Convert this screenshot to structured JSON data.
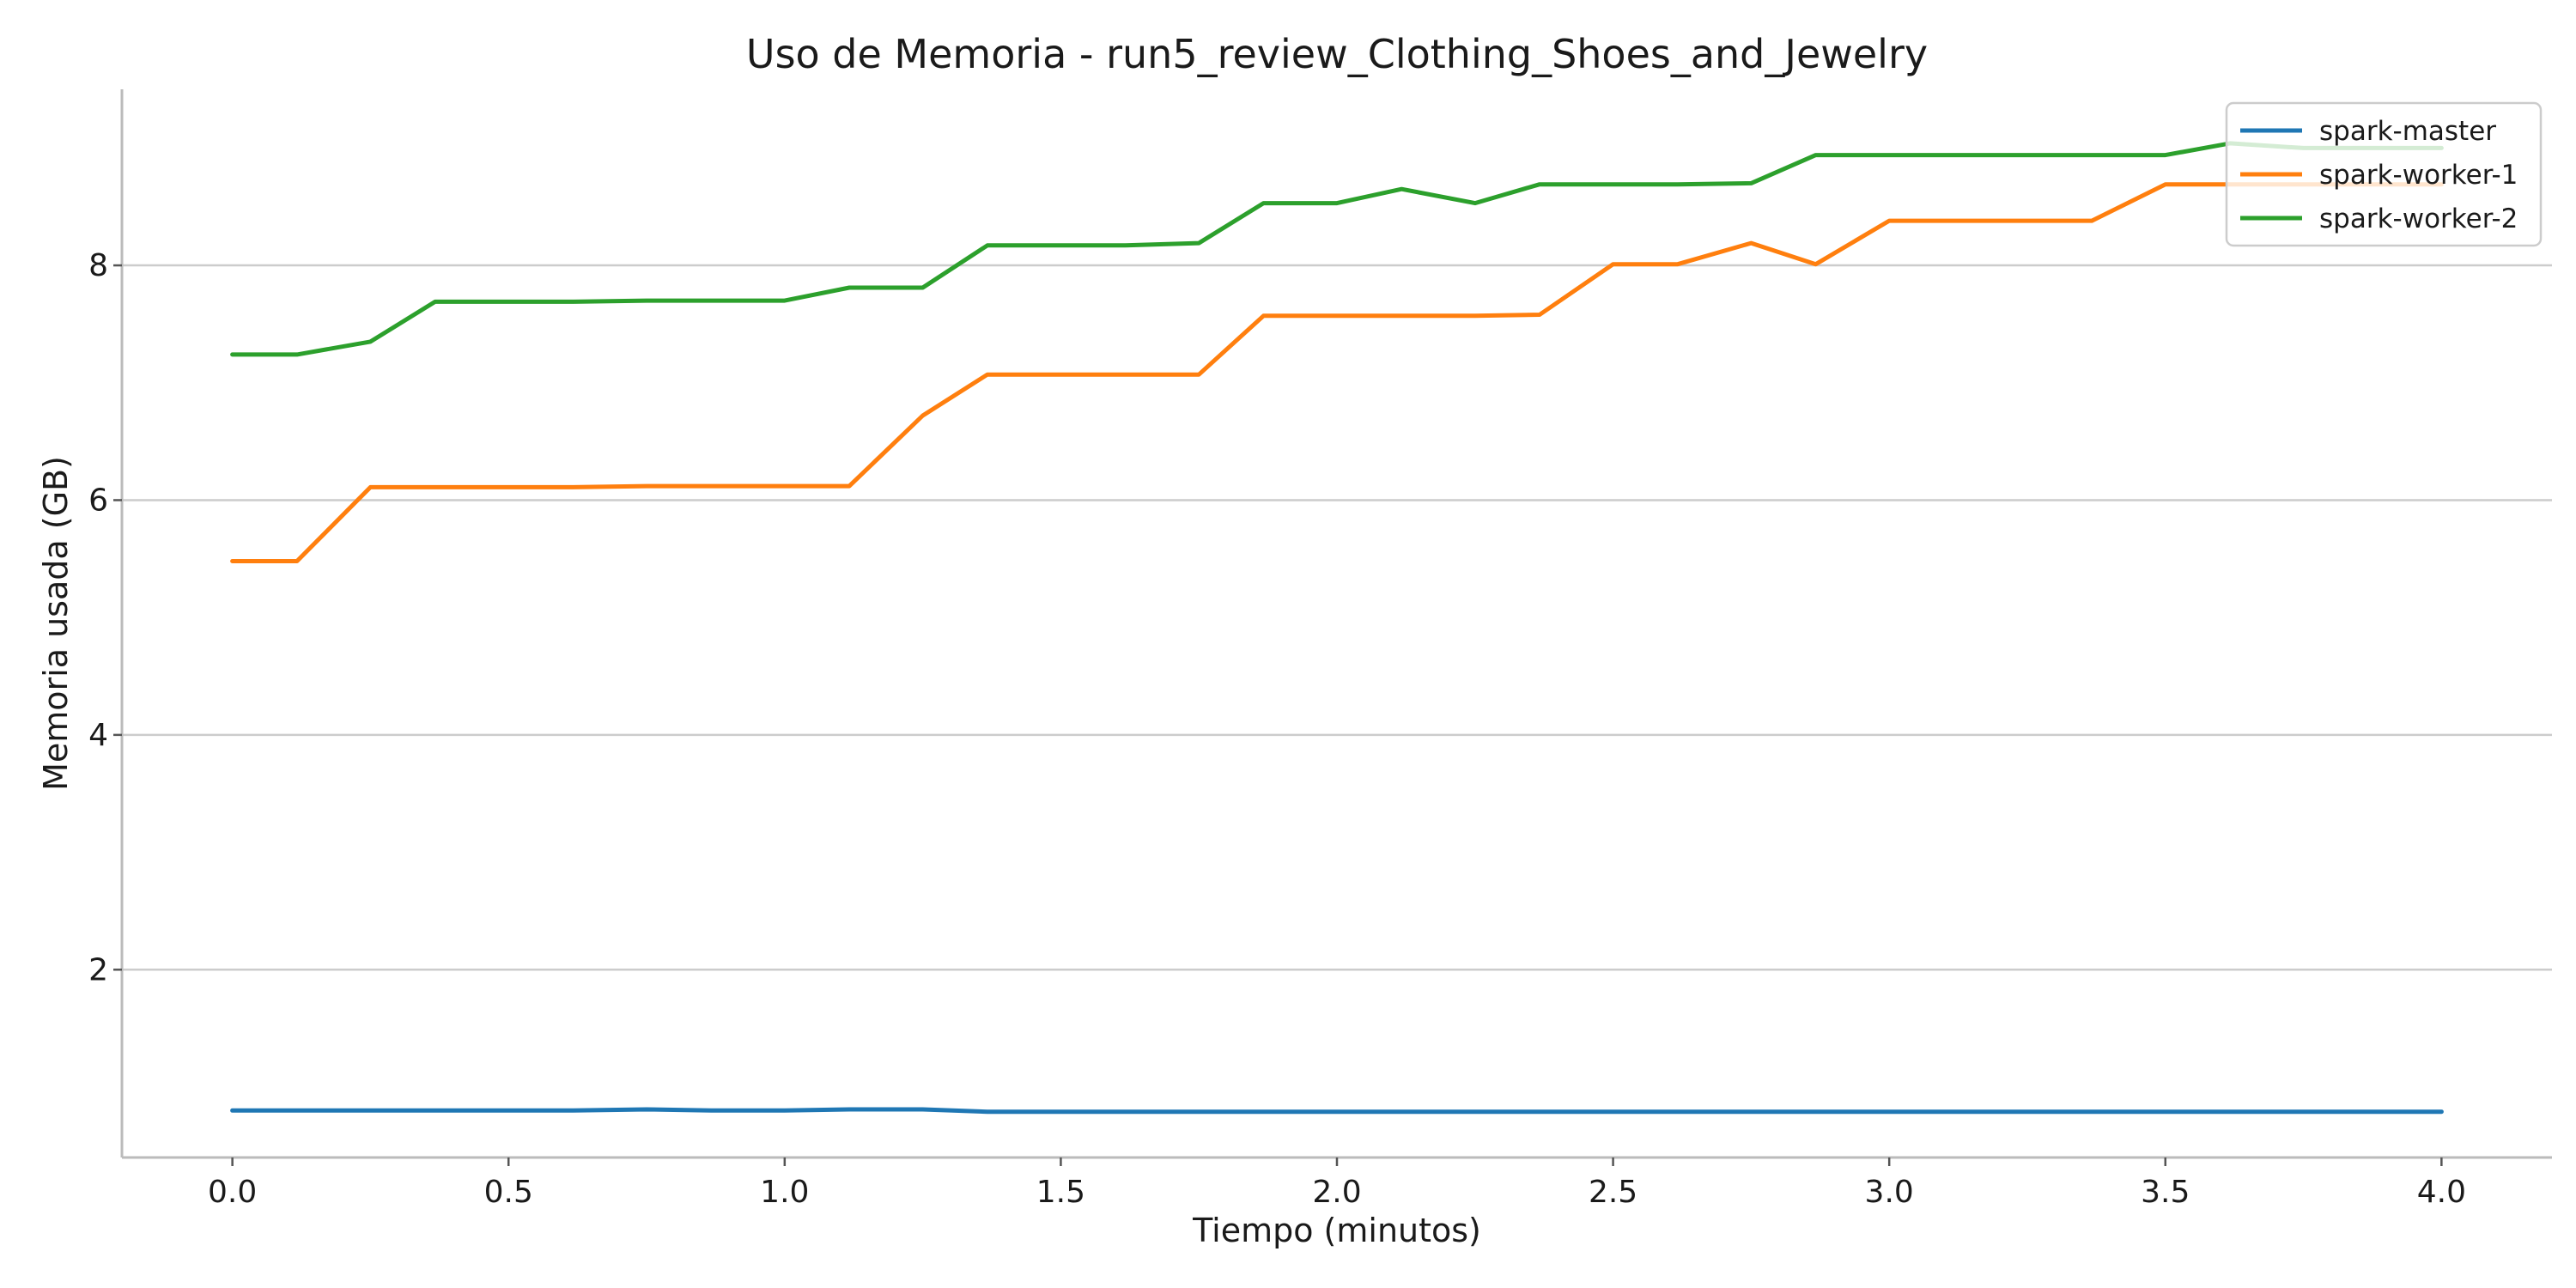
{
  "chart_data": {
    "type": "line",
    "title": "Uso de Memoria - run5_review_Clothing_Shoes_and_Jewelry",
    "xlabel": "Tiempo (minutos)",
    "ylabel": "Memoria usada (GB)",
    "xlim": [
      -0.2,
      4.2
    ],
    "ylim": [
      0.4,
      9.5
    ],
    "xticks": [
      0.0,
      0.5,
      1.0,
      1.5,
      2.0,
      2.5,
      3.0,
      3.5,
      4.0
    ],
    "xtick_labels": [
      "0.0",
      "0.5",
      "1.0",
      "1.5",
      "2.0",
      "2.5",
      "3.0",
      "3.5",
      "4.0"
    ],
    "yticks": [
      2,
      4,
      6,
      8
    ],
    "ytick_labels": [
      "2",
      "4",
      "6",
      "8"
    ],
    "grid": "horizontal",
    "legend_position": "top-right",
    "x": [
      0.0,
      0.117,
      0.25,
      0.367,
      0.5,
      0.617,
      0.75,
      0.867,
      1.0,
      1.117,
      1.25,
      1.367,
      1.5,
      1.617,
      1.75,
      1.867,
      2.0,
      2.117,
      2.25,
      2.367,
      2.5,
      2.617,
      2.75,
      2.867,
      3.0,
      3.117,
      3.25,
      3.367,
      3.5,
      3.617,
      3.75,
      3.867,
      4.0
    ],
    "series": [
      {
        "name": "spark-master",
        "color": "#1f77b4",
        "values": [
          0.8,
          0.8,
          0.8,
          0.8,
          0.8,
          0.8,
          0.81,
          0.8,
          0.8,
          0.81,
          0.81,
          0.79,
          0.79,
          0.79,
          0.79,
          0.79,
          0.79,
          0.79,
          0.79,
          0.79,
          0.79,
          0.79,
          0.79,
          0.79,
          0.79,
          0.79,
          0.79,
          0.79,
          0.79,
          0.79,
          0.79,
          0.79,
          0.79
        ]
      },
      {
        "name": "spark-worker-1",
        "color": "#ff7f0e",
        "values": [
          5.48,
          5.48,
          6.11,
          6.11,
          6.11,
          6.11,
          6.12,
          6.12,
          6.12,
          6.12,
          6.72,
          7.07,
          7.07,
          7.07,
          7.07,
          7.57,
          7.57,
          7.57,
          7.57,
          7.58,
          8.01,
          8.01,
          8.19,
          8.01,
          8.38,
          8.38,
          8.38,
          8.38,
          8.69,
          8.69,
          8.69,
          8.69,
          8.69
        ]
      },
      {
        "name": "spark-worker-2",
        "color": "#2ca02c",
        "values": [
          7.24,
          7.24,
          7.35,
          7.69,
          7.69,
          7.69,
          7.7,
          7.7,
          7.7,
          7.81,
          7.81,
          8.17,
          8.17,
          8.17,
          8.19,
          8.53,
          8.53,
          8.65,
          8.53,
          8.69,
          8.69,
          8.69,
          8.7,
          8.94,
          8.94,
          8.94,
          8.94,
          8.94,
          8.94,
          9.04,
          9.0,
          9.0,
          9.0
        ]
      }
    ]
  }
}
